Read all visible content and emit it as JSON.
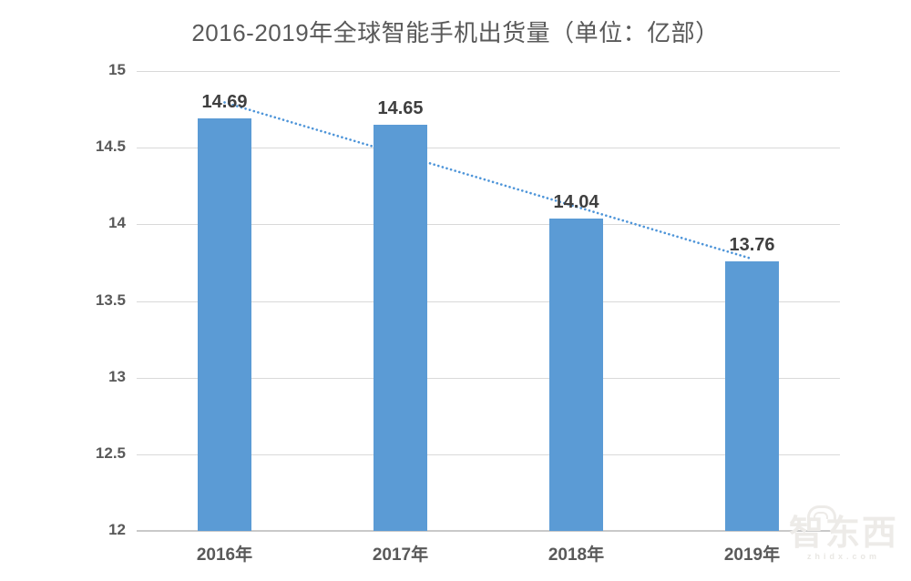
{
  "chart_data": {
    "type": "bar",
    "title": "2016-2019年全球智能手机出货量（单位：亿部）",
    "categories": [
      "2016年",
      "2017年",
      "2018年",
      "2019年"
    ],
    "values": [
      14.69,
      14.65,
      14.04,
      13.76
    ],
    "data_labels": [
      "14.69",
      "14.65",
      "14.04",
      "13.76"
    ],
    "xlabel": "",
    "ylabel": "",
    "ylim": [
      12,
      15
    ],
    "yticks": [
      12,
      12.5,
      13,
      13.5,
      14,
      14.5,
      15
    ],
    "ytick_labels": [
      "12",
      "12.5",
      "13",
      "13.5",
      "14",
      "14.5",
      "15"
    ],
    "grid": true,
    "legend": false,
    "bar_color": "#5B9BD5",
    "trendline": {
      "type": "linear",
      "style": "dotted",
      "color": "#4E95D9"
    }
  },
  "watermark": {
    "logo_text": "智东西",
    "subtext": "zhidx.com"
  },
  "colors": {
    "background": "#FFFFFF",
    "title_text": "#595959",
    "tick_text": "#595959",
    "data_label_text": "#3F3F3F",
    "gridline": "#D9D9D9",
    "axis_line": "#C9C9C9"
  }
}
